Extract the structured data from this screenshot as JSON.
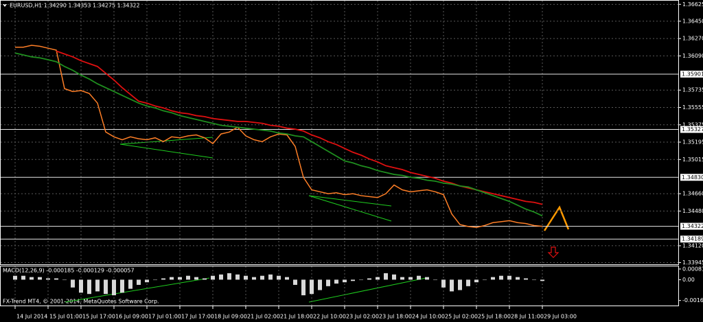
{
  "chart_data": [
    {
      "type": "line",
      "title": "EURUSD,H1  1.34290 1.34353 1.34275 1.34322",
      "categories": [
        "14 Jul 2014",
        null,
        null,
        null,
        "15 Jul 01:00",
        null,
        null,
        null,
        "15 Jul 17:00",
        null,
        null,
        null,
        "16 Jul 09:00",
        null,
        null,
        null,
        "17 Jul 01:00",
        null,
        null,
        null,
        "17 Jul 17:00",
        null,
        null,
        null,
        "18 Jul 09:00",
        null,
        null,
        null,
        "21 Jul 02:00",
        null,
        null,
        null,
        "21 Jul 18:00",
        null,
        null,
        null,
        "22 Jul 10:00",
        null,
        null,
        null,
        "23 Jul 02:00",
        null,
        null,
        null,
        "23 Jul 18:00",
        null,
        null,
        null,
        "24 Jul 10:00",
        null,
        null,
        null,
        "25 Jul 02:00",
        null,
        null,
        null,
        "25 Jul 18:00",
        null,
        null,
        null,
        "28 Jul 11:00",
        null,
        null,
        null,
        "29 Jul 03:00"
      ],
      "series": [
        {
          "color": "#ff7f27",
          "values": [
            1.3618,
            1.3618,
            1.362,
            1.3619,
            1.3617,
            1.3615,
            1.3575,
            1.3572,
            1.3573,
            1.357,
            1.356,
            1.353,
            1.3525,
            1.3522,
            1.3525,
            1.3523,
            1.3522,
            1.3524,
            1.352,
            1.3525,
            1.3524,
            1.3526,
            1.3527,
            1.3524,
            1.3518,
            1.3528,
            1.353,
            1.3535,
            1.3526,
            1.3522,
            1.352,
            1.3525,
            1.3528,
            1.3527,
            1.3515,
            1.3483,
            1.347,
            1.3468,
            1.3466,
            1.3467,
            1.3465,
            1.3466,
            1.3464,
            1.3463,
            1.3462,
            1.3466,
            1.3475,
            1.347,
            1.3468,
            1.3469,
            1.347,
            1.3468,
            1.3465,
            1.3445,
            1.3434,
            1.3432,
            1.3431,
            1.3433,
            1.3436,
            1.3437,
            1.3438,
            1.3436,
            1.3435,
            1.3433,
            1.34322
          ]
        },
        {
          "color": "#e01010",
          "values": [
            null,
            null,
            null,
            null,
            null,
            1.3614,
            1.3611,
            1.3608,
            1.3604,
            1.3601,
            1.3598,
            1.3591,
            1.3584,
            1.3576,
            1.3569,
            1.3562,
            1.356,
            1.3557,
            1.3555,
            1.3552,
            1.355,
            1.3549,
            1.3547,
            1.3546,
            1.3544,
            1.3543,
            1.3542,
            1.3541,
            1.3541,
            1.354,
            1.3539,
            1.3537,
            1.3536,
            1.3534,
            1.3533,
            1.3531,
            1.3527,
            1.3524,
            1.352,
            1.3517,
            1.3513,
            1.3509,
            1.3506,
            1.3502,
            1.3499,
            1.3495,
            1.3493,
            1.3491,
            1.3488,
            1.3486,
            1.3484,
            1.3482,
            1.3479,
            1.3477,
            1.3474,
            1.3472,
            1.347,
            1.3468,
            1.3466,
            1.3464,
            1.3462,
            1.346,
            1.3458,
            1.3457,
            1.3455
          ]
        },
        {
          "color": "#1f8f1f",
          "values": [
            1.3612,
            1.361,
            1.3608,
            1.3607,
            1.3605,
            1.3603,
            1.3598,
            1.3594,
            1.3589,
            1.3585,
            1.358,
            1.3576,
            1.3572,
            1.3568,
            1.3564,
            1.356,
            1.3557,
            1.3555,
            1.3552,
            1.355,
            1.3547,
            1.3545,
            1.3543,
            1.3541,
            1.3539,
            1.3537,
            1.3536,
            1.3535,
            1.3534,
            1.3533,
            1.3532,
            1.3531,
            1.3529,
            1.3528,
            1.3526,
            1.3525,
            1.352,
            1.3515,
            1.351,
            1.3505,
            1.35,
            1.3498,
            1.3495,
            1.3493,
            1.349,
            1.3488,
            1.3486,
            1.3485,
            1.3483,
            1.3482,
            1.348,
            1.3479,
            1.3477,
            1.3476,
            1.3474,
            1.3473,
            1.347,
            1.3467,
            1.3464,
            1.3461,
            1.3458,
            1.3454,
            1.345,
            1.3447,
            1.3443
          ]
        }
      ],
      "ylim": [
        1.3392,
        1.3667
      ],
      "yticks": [
        1.36625,
        {
          "value": 1.3645,
          "label": "1.36450"
        },
        {
          "value": 1.3627,
          "label": "1.36270"
        },
        {
          "value": 1.3609,
          "label": "1.36090"
        },
        1.35735,
        1.35555,
        1.35375,
        1.35195,
        1.35015,
        {
          "value": 1.3466,
          "label": "1.34660"
        },
        {
          "value": 1.3448,
          "label": "1.34480"
        },
        {
          "value": 1.3412,
          "label": "1.34120"
        },
        1.33945
      ],
      "levels": [
        1.35901,
        1.35327,
        {
          "value": 1.3483,
          "label": "1.34830"
        },
        1.34322,
        1.34189
      ],
      "grid": true
    },
    {
      "type": "bar",
      "title": "MACD(12,26,9) -0.000185 -0.000129 -0.000057",
      "annotation": "FX-Trend MT4, © 2001-2014, MetaQuotes Software Corp.",
      "color": "#d8d8d8",
      "values": [
        0.0003,
        0.0003,
        0.0002,
        0.0002,
        0.0001,
        0.0001,
        0.0,
        -0.0006,
        -0.001,
        -0.0011,
        -0.0009,
        -0.0011,
        -0.0012,
        -0.001,
        -0.0007,
        -0.0004,
        -0.0002,
        0.0,
        0.0001,
        0.0002,
        0.0002,
        0.0003,
        0.0002,
        0.0001,
        0.0003,
        0.0004,
        0.0005,
        0.0004,
        0.0003,
        0.0002,
        0.0003,
        0.0004,
        0.0003,
        0.0002,
        -0.0004,
        -0.0012,
        -0.0011,
        -0.0008,
        -0.0005,
        -0.0003,
        -0.0002,
        -0.0001,
        0.0,
        0.0001,
        0.0002,
        0.0005,
        0.0004,
        0.0002,
        0.0002,
        0.0003,
        0.0002,
        0.0,
        -0.0006,
        -0.0009,
        -0.0008,
        -0.0005,
        -0.0002,
        0.0,
        0.0002,
        0.0003,
        0.0003,
        0.0002,
        0.0001,
        0.0,
        -0.0001
      ],
      "ylim": [
        -0.00204,
        0.001075
      ],
      "yticks": [
        0.000819,
        {
          "value": 0,
          "label": "0.00"
        },
        {
          "value": -0.0016,
          "label": "-0.00160"
        }
      ]
    }
  ]
}
